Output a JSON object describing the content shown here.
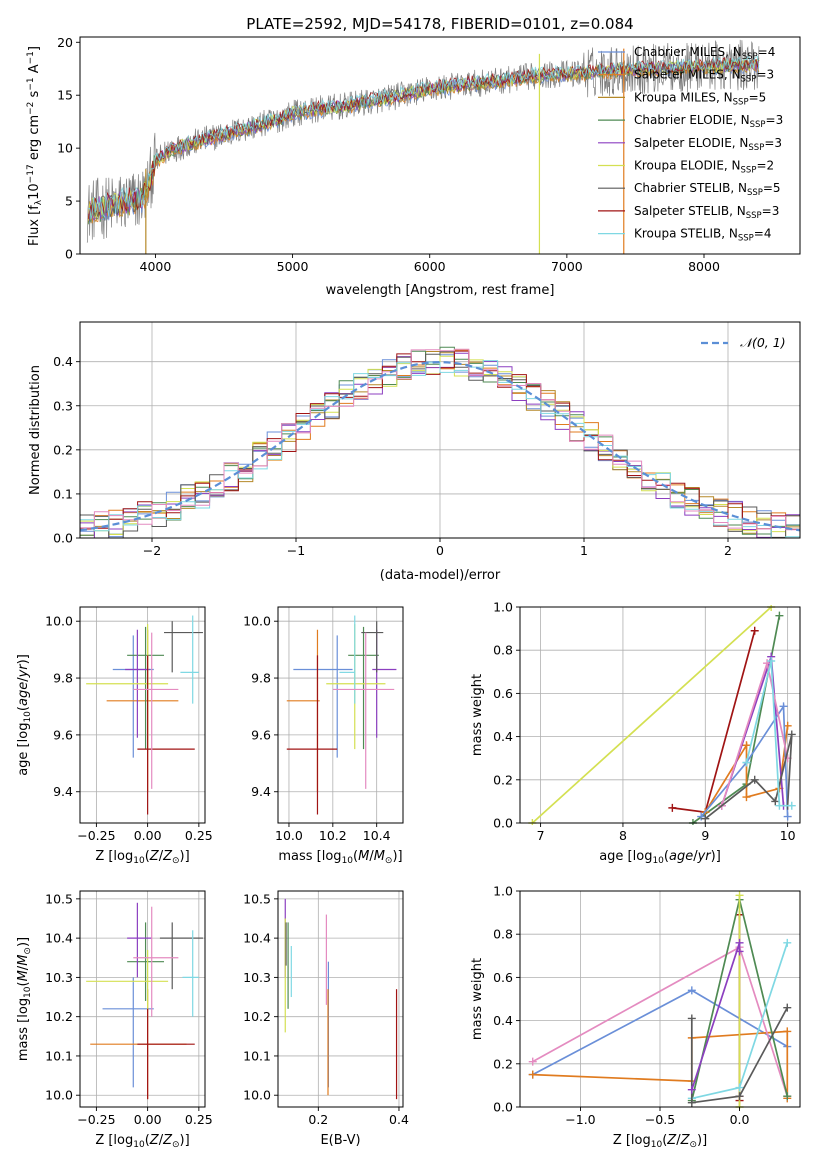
{
  "figure": {
    "title": "PLATE=2592, MJD=54178, FIBERID=0101, z=0.084"
  },
  "series_colors": [
    "#6a8fd8",
    "#e07b1f",
    "#b5892a",
    "#4f8a53",
    "#8c3fc0",
    "#d4e052",
    "#5a5a5a",
    "#a01414",
    "#7fd8e3"
  ],
  "extra_colors": {
    "pink": "#e48bc0",
    "gray_spec": "#7f7f7f",
    "gauss": "#5b8fd6"
  },
  "chart_data": [
    {
      "type": "line",
      "panel": "spectrum",
      "xlabel": "wavelength [Angstrom, rest frame]",
      "ylabel": "Flux [f_λ10^-17 erg cm^-2 s^-1 A^-1]",
      "xlim": [
        3450,
        8700
      ],
      "ylim": [
        0,
        20.5
      ],
      "xticks": [
        4000,
        5000,
        6000,
        7000,
        8000
      ],
      "yticks": [
        0,
        5,
        10,
        15,
        20
      ],
      "legend_position": "top-right",
      "legend": [
        {
          "label": "Chabrier MILES, N",
          "sub": "SSP",
          "tail": "=4"
        },
        {
          "label": "Salpeter MILES, N",
          "sub": "SSP",
          "tail": "=3"
        },
        {
          "label": "Kroupa MILES, N",
          "sub": "SSP",
          "tail": "=5"
        },
        {
          "label": "Chabrier ELODIE, N",
          "sub": "SSP",
          "tail": "=3"
        },
        {
          "label": "Salpeter ELODIE, N",
          "sub": "SSP",
          "tail": "=3"
        },
        {
          "label": "Kroupa ELODIE, N",
          "sub": "SSP",
          "tail": "=2"
        },
        {
          "label": "Chabrier STELIB, N",
          "sub": "SSP",
          "tail": "=5"
        },
        {
          "label": "Salpeter STELIB, N",
          "sub": "SSP",
          "tail": "=3"
        },
        {
          "label": "Kroupa STELIB, N",
          "sub": "SSP",
          "tail": "=4"
        }
      ],
      "continuum": {
        "x": [
          3500,
          3600,
          3700,
          3800,
          3900,
          3950,
          4000,
          4100,
          4300,
          4500,
          4700,
          4900,
          5000,
          5200,
          5400,
          5600,
          5800,
          6000,
          6200,
          6400,
          6600,
          6800,
          7000,
          7200,
          7400,
          7600,
          7800,
          8000,
          8200,
          8400
        ],
        "y": [
          4.0,
          4.3,
          4.6,
          4.9,
          5.3,
          6.5,
          8.7,
          9.8,
          10.6,
          11.3,
          12.0,
          12.7,
          13.3,
          13.7,
          14.0,
          14.5,
          15.0,
          15.6,
          15.9,
          16.2,
          16.5,
          16.9,
          17.0,
          17.2,
          17.4,
          17.5,
          17.6,
          17.7,
          17.8,
          17.9
        ]
      },
      "vertical_spikes": [
        {
          "x": 6800,
          "series_index": 5
        },
        {
          "x": 7415,
          "series_index": 1
        },
        {
          "x": 3930,
          "series_index": 2
        }
      ]
    },
    {
      "type": "histogram",
      "panel": "residuals",
      "xlabel": "(data-model)/error",
      "ylabel": "Normed distribution",
      "xlim": [
        -2.5,
        2.5
      ],
      "ylim": [
        0,
        0.49
      ],
      "xticks": [
        -2,
        -1,
        0,
        1,
        2
      ],
      "xtick_labels": [
        "−2",
        "−1",
        "0",
        "1",
        "2"
      ],
      "yticks": [
        0.0,
        0.1,
        0.2,
        0.3,
        0.4
      ],
      "ytick_labels": [
        "0.0",
        "0.1",
        "0.2",
        "0.3",
        "0.4"
      ],
      "bin_width": 0.1,
      "bin_start": -2.5,
      "bins": 50,
      "gauss_legend": "𝒩(0, 1)"
    },
    {
      "type": "scatter",
      "panel": "z_vs_age",
      "xlabel": "Z [log10(Z/Z⊙)]",
      "ylabel": "age [log10(age/yr)]",
      "xlim": [
        -0.33,
        0.28
      ],
      "ylim": [
        9.29,
        10.05
      ],
      "xticks": [
        -0.25,
        0.0,
        0.25
      ],
      "xtick_labels": [
        "−0.25",
        "0.00",
        "0.25"
      ],
      "yticks": [
        9.4,
        9.6,
        9.8,
        10.0
      ],
      "points": [
        {
          "x": -0.07,
          "y": 9.83,
          "xe": [
            -0.17,
            0.03
          ],
          "ye": [
            9.52,
            9.95
          ],
          "c": 0
        },
        {
          "x": 0.0,
          "y": 9.72,
          "xe": [
            -0.2,
            0.15
          ],
          "ye": [
            9.4,
            9.97
          ],
          "c": 1
        },
        {
          "x": -0.01,
          "y": 9.88,
          "xe": [
            -0.1,
            0.08
          ],
          "ye": [
            9.55,
            9.98
          ],
          "c": 3
        },
        {
          "x": -0.05,
          "y": 9.83,
          "xe": [
            -0.11,
            0.01
          ],
          "ye": [
            9.59,
            9.97
          ],
          "c": 4
        },
        {
          "x": 0.0,
          "y": 9.78,
          "xe": [
            -0.3,
            0.1
          ],
          "ye": [
            9.55,
            9.99
          ],
          "c": 5
        },
        {
          "x": 0.12,
          "y": 9.96,
          "xe": [
            0.08,
            0.27
          ],
          "ye": [
            9.82,
            10.0
          ],
          "c": 6
        },
        {
          "x": 0.0,
          "y": 9.55,
          "xe": [
            -0.05,
            0.23
          ],
          "ye": [
            9.32,
            9.88
          ],
          "c": 7
        },
        {
          "x": 0.22,
          "y": 9.82,
          "xe": [
            0.16,
            0.25
          ],
          "ye": [
            9.71,
            10.02
          ],
          "c": 8
        },
        {
          "x": 0.02,
          "y": 9.76,
          "xe": [
            -0.07,
            0.15
          ],
          "ye": [
            9.41,
            9.96
          ],
          "c": "pink"
        }
      ]
    },
    {
      "type": "scatter",
      "panel": "mass_vs_age",
      "xlabel": "mass [log10(M/M⊙)]",
      "ylabel": "",
      "xlim": [
        9.95,
        10.52
      ],
      "ylim": [
        9.29,
        10.05
      ],
      "xticks": [
        10.0,
        10.2,
        10.4
      ],
      "xtick_labels": [
        "10.0",
        "10.2",
        "10.4"
      ],
      "yticks": [
        9.4,
        9.6,
        9.8,
        10.0
      ],
      "points": [
        {
          "x": 10.22,
          "y": 9.83,
          "xe": [
            10.02,
            10.29
          ],
          "ye": [
            9.52,
            9.95
          ],
          "c": 0
        },
        {
          "x": 10.13,
          "y": 9.72,
          "xe": [
            9.99,
            10.14
          ],
          "ye": [
            9.4,
            9.97
          ],
          "c": 1
        },
        {
          "x": 10.34,
          "y": 9.88,
          "xe": [
            10.27,
            10.41
          ],
          "ye": [
            9.55,
            9.98
          ],
          "c": 3
        },
        {
          "x": 10.4,
          "y": 9.83,
          "xe": [
            10.38,
            10.49
          ],
          "ye": [
            9.59,
            9.97
          ],
          "c": 4
        },
        {
          "x": 10.3,
          "y": 9.78,
          "xe": [
            10.17,
            10.44
          ],
          "ye": [
            9.55,
            9.99
          ],
          "c": 5
        },
        {
          "x": 10.4,
          "y": 9.96,
          "xe": [
            10.33,
            10.43
          ],
          "ye": [
            9.82,
            10.0
          ],
          "c": 6
        },
        {
          "x": 10.13,
          "y": 9.55,
          "xe": [
            9.99,
            10.22
          ],
          "ye": [
            9.32,
            9.88
          ],
          "c": 7
        },
        {
          "x": 10.3,
          "y": 9.82,
          "xe": [
            10.23,
            10.3
          ],
          "ye": [
            9.71,
            10.02
          ],
          "c": 8
        },
        {
          "x": 10.35,
          "y": 9.76,
          "xe": [
            10.2,
            10.48
          ],
          "ye": [
            9.41,
            9.96
          ],
          "c": "pink"
        }
      ]
    },
    {
      "type": "line",
      "panel": "age_vs_weight",
      "xlabel": "age [log10(age/yr)]",
      "ylabel": "mass weight",
      "xlim": [
        6.75,
        10.15
      ],
      "ylim": [
        0,
        1.0
      ],
      "xticks": [
        7,
        8,
        9,
        10
      ],
      "yticks": [
        0.0,
        0.2,
        0.4,
        0.6,
        0.8,
        1.0
      ],
      "series": [
        {
          "c": 5,
          "points": [
            [
              6.9,
              0.0
            ],
            [
              9.8,
              1.0
            ]
          ]
        },
        {
          "c": 7,
          "points": [
            [
              8.6,
              0.07
            ],
            [
              9.0,
              0.05
            ],
            [
              9.6,
              0.89
            ]
          ]
        },
        {
          "c": 3,
          "points": [
            [
              8.85,
              0.0
            ],
            [
              9.5,
              0.18
            ],
            [
              9.9,
              0.96
            ]
          ]
        },
        {
          "c": 1,
          "points": [
            [
              9.0,
              0.05
            ],
            [
              9.5,
              0.36
            ],
            [
              9.5,
              0.12
            ],
            [
              9.9,
              0.16
            ],
            [
              10.0,
              0.45
            ]
          ]
        },
        {
          "c": 4,
          "points": [
            [
              9.2,
              0.08
            ],
            [
              9.8,
              0.77
            ],
            [
              9.95,
              0.08
            ]
          ]
        },
        {
          "c": 0,
          "points": [
            [
              8.95,
              0.03
            ],
            [
              9.5,
              0.28
            ],
            [
              9.95,
              0.54
            ],
            [
              10.0,
              0.03
            ]
          ]
        },
        {
          "c": "pink",
          "points": [
            [
              9.2,
              0.08
            ],
            [
              9.75,
              0.74
            ],
            [
              10.0,
              0.3
            ]
          ]
        },
        {
          "c": 6,
          "points": [
            [
              9.0,
              0.02
            ],
            [
              9.6,
              0.2
            ],
            [
              9.85,
              0.1
            ],
            [
              10.05,
              0.41
            ],
            [
              10.0,
              0.08
            ]
          ]
        },
        {
          "c": 8,
          "points": [
            [
              9.5,
              0.28
            ],
            [
              9.8,
              0.75
            ],
            [
              9.9,
              0.08
            ],
            [
              10.05,
              0.08
            ]
          ]
        }
      ]
    },
    {
      "type": "scatter",
      "panel": "z_vs_mass",
      "xlabel": "Z [log10(Z/Z⊙)]",
      "ylabel": "mass [log10(M/M⊙)]",
      "xlim": [
        -0.33,
        0.28
      ],
      "ylim": [
        9.97,
        10.52
      ],
      "xticks": [
        -0.25,
        0.0,
        0.25
      ],
      "xtick_labels": [
        "−0.25",
        "0.00",
        "0.25"
      ],
      "yticks": [
        10.0,
        10.1,
        10.2,
        10.3,
        10.4,
        10.5
      ],
      "points": [
        {
          "x": -0.07,
          "y": 10.22,
          "xe": [
            -0.22,
            0.03
          ],
          "ye": [
            10.02,
            10.3
          ],
          "c": 0
        },
        {
          "x": 0.0,
          "y": 10.13,
          "xe": [
            -0.28,
            0.19
          ],
          "ye": [
            9.99,
            10.27
          ],
          "c": 1
        },
        {
          "x": -0.01,
          "y": 10.34,
          "xe": [
            -0.1,
            0.08
          ],
          "ye": [
            10.24,
            10.44
          ],
          "c": 3
        },
        {
          "x": -0.05,
          "y": 10.4,
          "xe": [
            -0.1,
            0.02
          ],
          "ye": [
            10.3,
            10.49
          ],
          "c": 4
        },
        {
          "x": 0.0,
          "y": 10.29,
          "xe": [
            -0.3,
            0.1
          ],
          "ye": [
            10.22,
            10.37
          ],
          "c": 5
        },
        {
          "x": 0.12,
          "y": 10.4,
          "xe": [
            0.06,
            0.27
          ],
          "ye": [
            10.27,
            10.44
          ],
          "c": 6
        },
        {
          "x": 0.0,
          "y": 10.13,
          "xe": [
            -0.05,
            0.23
          ],
          "ye": [
            9.99,
            10.22
          ],
          "c": 7
        },
        {
          "x": 0.22,
          "y": 10.3,
          "xe": [
            0.17,
            0.25
          ],
          "ye": [
            10.2,
            10.42
          ],
          "c": 8
        },
        {
          "x": 0.02,
          "y": 10.35,
          "xe": [
            -0.07,
            0.15
          ],
          "ye": [
            10.2,
            10.48
          ],
          "c": "pink"
        }
      ]
    },
    {
      "type": "scatter",
      "panel": "ebv_vs_mass",
      "xlabel": "E(B-V)",
      "ylabel": "",
      "xlim": [
        0.1,
        0.41
      ],
      "ylim": [
        9.97,
        10.52
      ],
      "xticks": [
        0.2,
        0.4
      ],
      "xtick_labels": [
        "0.2",
        "0.4"
      ],
      "yticks": [
        10.0,
        10.1,
        10.2,
        10.3,
        10.4,
        10.5
      ],
      "points": [
        {
          "x": 0.225,
          "y": 10.22,
          "ye": [
            10.02,
            10.34
          ],
          "c": 0
        },
        {
          "x": 0.224,
          "y": 10.13,
          "ye": [
            10.0,
            10.27
          ],
          "c": 1
        },
        {
          "x": 0.125,
          "y": 10.34,
          "ye": [
            10.22,
            10.44
          ],
          "c": 3
        },
        {
          "x": 0.118,
          "y": 10.4,
          "ye": [
            10.3,
            10.5
          ],
          "c": 4
        },
        {
          "x": 0.118,
          "y": 10.29,
          "ye": [
            10.16,
            10.45
          ],
          "c": 5
        },
        {
          "x": 0.12,
          "y": 10.4,
          "ye": [
            10.33,
            10.44
          ],
          "c": 6
        },
        {
          "x": 0.394,
          "y": 10.13,
          "ye": [
            9.99,
            10.27
          ],
          "c": 7
        },
        {
          "x": 0.133,
          "y": 10.3,
          "ye": [
            10.25,
            10.38
          ],
          "c": 8
        },
        {
          "x": 0.22,
          "y": 10.35,
          "ye": [
            10.23,
            10.46
          ],
          "c": "pink"
        }
      ]
    },
    {
      "type": "line",
      "panel": "z_vs_weight",
      "xlabel": "Z [log10(Z/Z⊙)]",
      "ylabel": "mass weight",
      "xlim": [
        -1.38,
        0.38
      ],
      "ylim": [
        0,
        1.0
      ],
      "xticks": [
        -1.0,
        -0.5,
        0.0
      ],
      "xtick_labels": [
        "−1.0",
        "−0.5",
        "0.0"
      ],
      "yticks": [
        0.0,
        0.2,
        0.4,
        0.6,
        0.8,
        1.0
      ],
      "series": [
        {
          "c": 0,
          "points": [
            [
              -1.3,
              0.15
            ],
            [
              -0.3,
              0.54
            ],
            [
              0.3,
              0.28
            ]
          ]
        },
        {
          "c": 1,
          "points": [
            [
              -1.3,
              0.15
            ],
            [
              -0.3,
              0.12
            ],
            [
              -0.3,
              0.32
            ],
            [
              0.3,
              0.35
            ],
            [
              0.3,
              0.04
            ]
          ]
        },
        {
          "c": "pink",
          "points": [
            [
              -1.3,
              0.21
            ],
            [
              0.0,
              0.74
            ],
            [
              0.3,
              0.05
            ]
          ]
        },
        {
          "c": 7,
          "points": [
            [
              0.0,
              0.89
            ],
            [
              0.0,
              0.05
            ],
            [
              0.0,
              0.03
            ]
          ]
        },
        {
          "c": 3,
          "points": [
            [
              -0.3,
              0.03
            ],
            [
              0.0,
              0.96
            ],
            [
              0.3,
              0.05
            ]
          ]
        },
        {
          "c": 5,
          "points": [
            [
              0.0,
              0.98
            ],
            [
              0.0,
              0.0
            ]
          ]
        },
        {
          "c": 8,
          "points": [
            [
              -0.3,
              0.04
            ],
            [
              0.0,
              0.09
            ],
            [
              0.3,
              0.76
            ]
          ]
        },
        {
          "c": 6,
          "points": [
            [
              -0.3,
              0.41
            ],
            [
              -0.3,
              0.02
            ],
            [
              0.0,
              0.05
            ],
            [
              0.3,
              0.46
            ]
          ]
        },
        {
          "c": 4,
          "points": [
            [
              -0.3,
              0.08
            ],
            [
              0.0,
              0.76
            ],
            [
              0.0,
              0.72
            ]
          ]
        }
      ]
    }
  ]
}
